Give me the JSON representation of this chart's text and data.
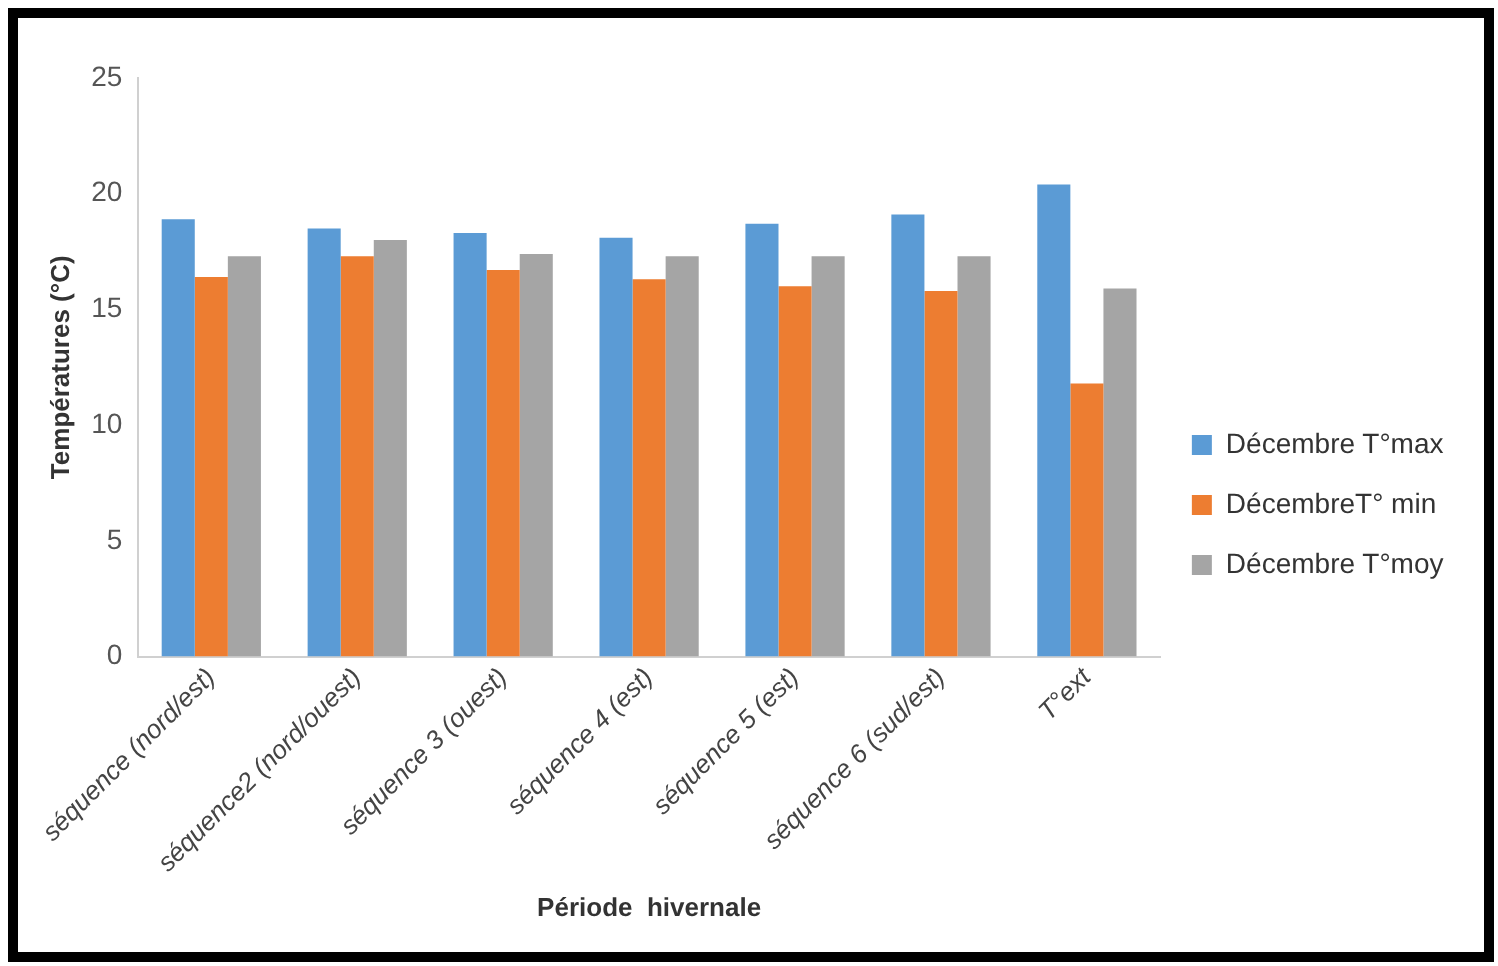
{
  "chart_data": {
    "type": "bar",
    "xlabel": "Période  hivernale",
    "ylabel": "Températures (°C)",
    "categories": [
      "séquence (nord/est)",
      "séquence2 (nord/ouest)",
      "séquence 3 (ouest)",
      "séquence 4 (est)",
      "séquence 5 (est)",
      "séquence 6 (sud/est)",
      "T°ext"
    ],
    "series": [
      {
        "name": "Décembre T°max",
        "color": "#5b9bd5",
        "values": [
          18.9,
          18.5,
          18.3,
          18.1,
          18.7,
          19.1,
          20.4
        ]
      },
      {
        "name": "DécembreT° min",
        "color": "#ed7d31",
        "values": [
          16.4,
          17.3,
          16.7,
          16.3,
          16.0,
          15.8,
          11.8
        ]
      },
      {
        "name": "Décembre T°moy",
        "color": "#a5a5a5",
        "values": [
          17.3,
          18.0,
          17.4,
          17.3,
          17.3,
          17.3,
          15.9
        ]
      }
    ],
    "ylim": [
      0,
      25
    ],
    "yticks": [
      0,
      5,
      10,
      15,
      20,
      25
    ],
    "grid": false,
    "legend": "right"
  }
}
